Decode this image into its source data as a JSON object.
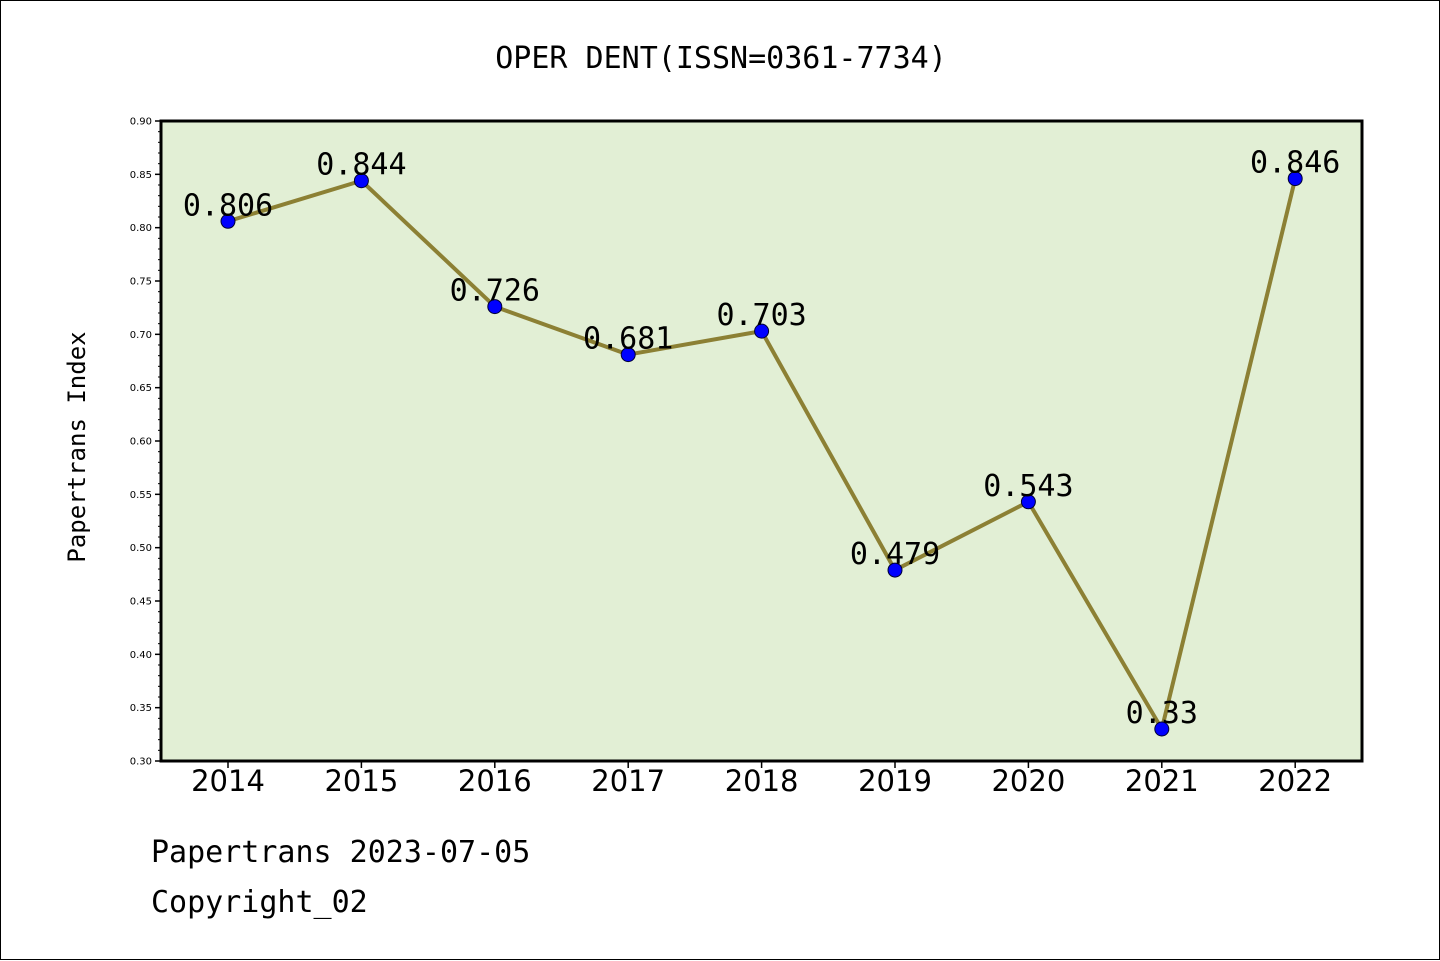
{
  "chart_data": {
    "type": "line",
    "title": "OPER DENT(ISSN=0361-7734)",
    "xlabel": "",
    "ylabel": "Papertrans Index",
    "categories": [
      "2014",
      "2015",
      "2016",
      "2017",
      "2018",
      "2019",
      "2020",
      "2021",
      "2022"
    ],
    "series": [
      {
        "values": [
          0.806,
          0.844,
          0.726,
          0.681,
          0.703,
          0.479,
          0.543,
          0.33,
          0.846
        ],
        "data_labels": [
          "0.806",
          "0.844",
          "0.726",
          "0.681",
          "0.703",
          "0.479",
          "0.543",
          "0.33",
          "0.846"
        ]
      }
    ],
    "ylim": [
      0.3,
      0.9
    ],
    "yticks": [
      "0.30",
      "0.35",
      "0.40",
      "0.45",
      "0.50",
      "0.55",
      "0.60",
      "0.65",
      "0.70",
      "0.75",
      "0.80",
      "0.85",
      "0.90"
    ],
    "grid": false,
    "colors": {
      "plot_background": "#e2efd5",
      "line": "#8c8034",
      "marker": "#0000ff"
    }
  },
  "footer": {
    "date_text": "Papertrans 2023-07-05",
    "copyright_text": "Copyright_02"
  }
}
